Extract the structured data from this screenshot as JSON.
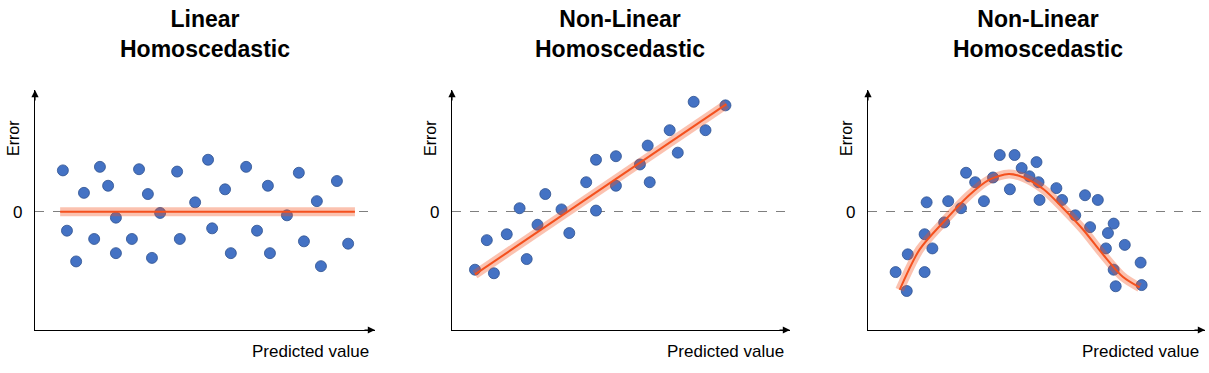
{
  "chart_data": [
    {
      "type": "scatter",
      "title": "Linear Homoscedastic",
      "x_label": "Predicted value",
      "y_label": "Error",
      "xlim": [
        0,
        10
      ],
      "ylim": [
        -1,
        1.03
      ],
      "yticks": [
        0
      ],
      "grid": true,
      "tick_labels": "y",
      "series": [
        {
          "type": "scatter",
          "marker": "circle",
          "color": "#4472c4",
          "x": [
            0.82,
            0.94,
            1.21,
            1.44,
            1.74,
            1.91,
            2.15,
            2.38,
            2.38,
            2.85,
            3.06,
            3.32,
            3.44,
            3.68,
            4.18,
            4.26,
            4.71,
            5.09,
            5.21,
            5.59,
            5.76,
            6.21,
            6.53,
            6.85,
            6.91,
            7.41,
            7.76,
            7.91,
            8.29,
            8.41,
            8.88,
            9.21
          ],
          "values": [
            0.35,
            -0.16,
            -0.42,
            0.16,
            -0.23,
            0.38,
            0.22,
            -0.05,
            -0.35,
            -0.23,
            0.36,
            0.15,
            -0.39,
            -0.01,
            0.34,
            -0.23,
            0.08,
            0.44,
            -0.14,
            0.19,
            -0.35,
            0.38,
            -0.16,
            0.22,
            -0.35,
            -0.03,
            0.33,
            -0.25,
            0.09,
            -0.46,
            0.26,
            -0.27
          ]
        },
        {
          "type": "line",
          "line_style": "solid",
          "color": "#f4511e",
          "x": [
            0.74,
            9.41
          ],
          "values": [
            0,
            0
          ]
        }
      ]
    },
    {
      "type": "scatter",
      "title": "Non-Linear Homoscedastic",
      "x_label": "Predicted value",
      "y_label": "Error",
      "xlim": [
        0,
        10
      ],
      "ylim": [
        -1,
        1.03
      ],
      "yticks": [
        0
      ],
      "grid": true,
      "tick_labels": "y",
      "series": [
        {
          "type": "scatter",
          "marker": "circle",
          "color": "#4472c4",
          "x": [
            0.68,
            1.03,
            1.24,
            1.62,
            2.0,
            2.21,
            2.53,
            2.76,
            3.24,
            3.47,
            3.97,
            4.26,
            4.26,
            4.85,
            4.85,
            5.56,
            5.79,
            5.85,
            6.44,
            6.68,
            7.15,
            7.5,
            8.09
          ],
          "values": [
            -0.49,
            -0.24,
            -0.52,
            -0.19,
            0.03,
            -0.4,
            -0.11,
            0.15,
            0.02,
            -0.18,
            0.25,
            0.44,
            0.01,
            0.47,
            0.22,
            0.4,
            0.56,
            0.25,
            0.69,
            0.5,
            0.93,
            0.69,
            0.9
          ]
        },
        {
          "type": "line",
          "line_style": "solid",
          "color": "#f4511e",
          "x": [
            0.68,
            8.12
          ],
          "values": [
            -0.53,
            0.91
          ]
        }
      ]
    },
    {
      "type": "scatter",
      "title": "Non-Linear Homoscedastic",
      "x_label": "Predicted value",
      "y_label": "Error",
      "xlim": [
        0,
        10
      ],
      "ylim": [
        -1,
        1.03
      ],
      "yticks": [
        0
      ],
      "grid": true,
      "tick_labels": "y",
      "series": [
        {
          "type": "scatter",
          "marker": "circle",
          "color": "#4472c4",
          "x": [
            0.82,
            1.15,
            1.18,
            1.68,
            1.68,
            1.74,
            1.91,
            2.26,
            2.38,
            2.76,
            2.91,
            3.18,
            3.44,
            3.71,
            3.91,
            4.21,
            4.35,
            4.56,
            4.79,
            5.0,
            5.06,
            5.09,
            5.59,
            5.76,
            6.15,
            6.44,
            6.59,
            6.82,
            7.06,
            7.12,
            7.29,
            7.29,
            7.35,
            7.62,
            8.09,
            8.12
          ],
          "values": [
            -0.51,
            -0.67,
            -0.36,
            -0.19,
            -0.51,
            0.08,
            -0.31,
            -0.09,
            0.09,
            0.03,
            0.33,
            0.25,
            0.09,
            0.29,
            0.48,
            0.19,
            0.48,
            0.37,
            0.3,
            0.42,
            0.25,
            0.1,
            0.2,
            0.1,
            -0.03,
            0.14,
            -0.13,
            0.1,
            -0.31,
            -0.18,
            -0.1,
            -0.49,
            -0.63,
            -0.28,
            -0.43,
            -0.62
          ]
        },
        {
          "type": "line",
          "line_style": "solid",
          "color": "#f4511e",
          "x": [
            0.94,
            1.53,
            2.26,
            3.0,
            3.59,
            4.18,
            4.62,
            5.21,
            5.79,
            6.38,
            6.97,
            7.56,
            8.06
          ],
          "values": [
            -0.66,
            -0.32,
            -0.08,
            0.14,
            0.27,
            0.32,
            0.29,
            0.19,
            0.03,
            -0.15,
            -0.36,
            -0.55,
            -0.64
          ]
        }
      ]
    }
  ]
}
